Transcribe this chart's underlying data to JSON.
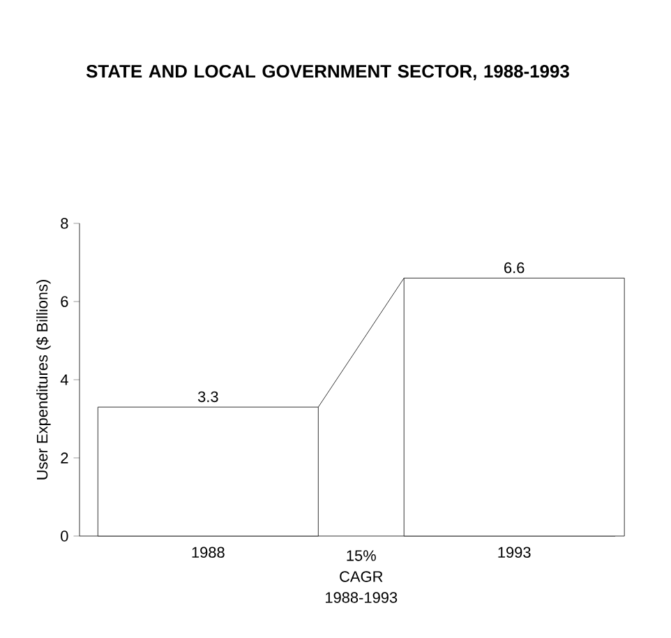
{
  "chart_data": {
    "type": "bar",
    "title": "STATE AND LOCAL GOVERNMENT SECTOR, 1988-1993",
    "ylabel": "User Expenditures ($ Billions)",
    "categories": [
      "1988",
      "1993"
    ],
    "values": [
      3.3,
      6.6
    ],
    "color": "#000000",
    "ylim": [
      0,
      8
    ],
    "yticks": [
      0,
      2,
      4,
      6,
      8
    ],
    "data_labels": true,
    "annotations": [
      "15%",
      "CAGR",
      "1988-1993"
    ]
  }
}
